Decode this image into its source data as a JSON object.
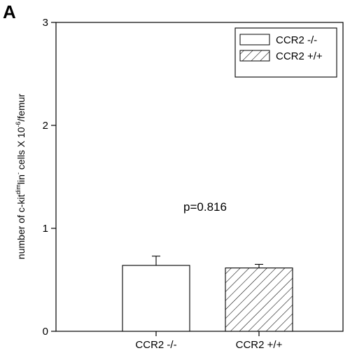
{
  "panel_label": "A",
  "chart_data": {
    "type": "bar",
    "categories": [
      "CCR2 -/-",
      "CCR2 +/+"
    ],
    "values": [
      0.64,
      0.615
    ],
    "errors": [
      0.09,
      0.035
    ],
    "ylim": [
      0,
      3
    ],
    "yticks": [
      "0",
      "1",
      "2",
      "3"
    ],
    "ylabel": {
      "part1": "number of c-kit",
      "sup1": "dim",
      "part2": "lin",
      "sup2": "-",
      "part3": " cells X 10",
      "sup3": "-6",
      "part4": "/femur"
    },
    "annotation": "p=0.816",
    "legend": {
      "placement": "top-right",
      "entries": [
        {
          "label": "CCR2 -/-",
          "fill": "white"
        },
        {
          "label": "CCR2 +/+",
          "fill": "hatched"
        }
      ]
    },
    "grid": false
  }
}
